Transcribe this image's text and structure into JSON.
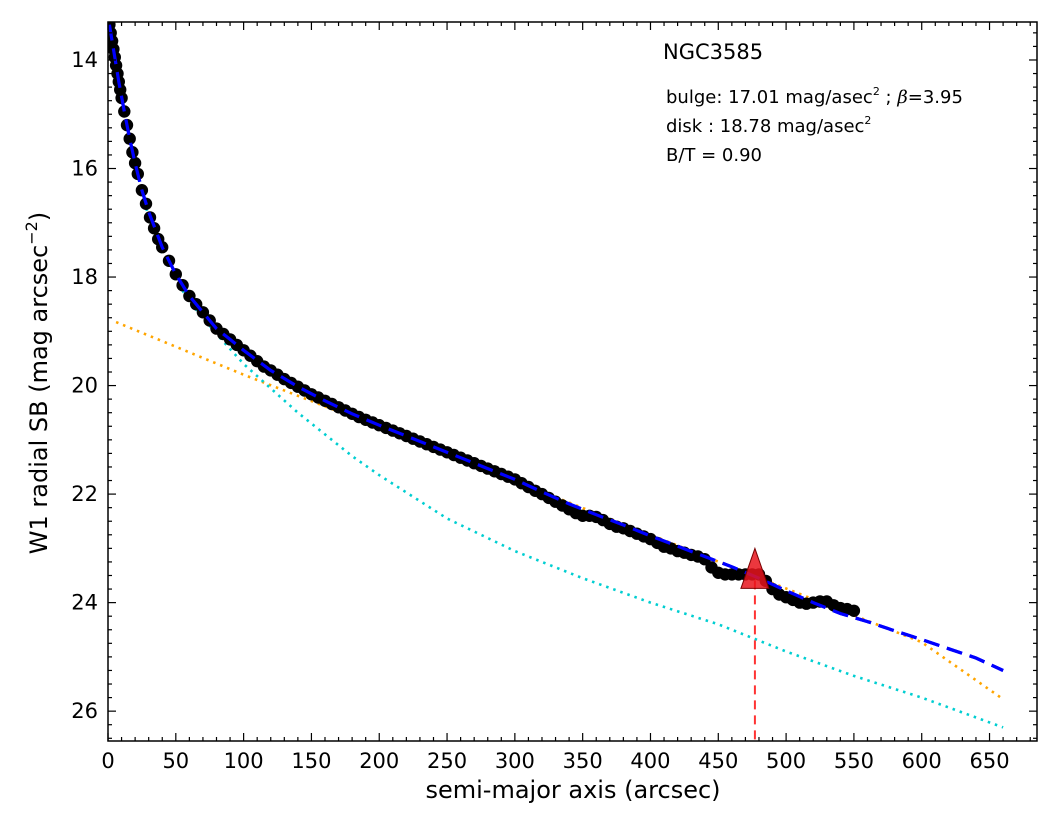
{
  "chart_data": {
    "type": "scatter",
    "title": "NGC3585",
    "xlabel": "semi-major axis (arcsec)",
    "ylabel": "W1 radial SB (mag arcsec",
    "ylabel_exp": "−2",
    "ylabel_close": ")",
    "xlim": [
      0,
      685
    ],
    "ylim": [
      26.55,
      13.3
    ],
    "y_inverted": true,
    "xticks": [
      0,
      50,
      100,
      150,
      200,
      250,
      300,
      350,
      400,
      450,
      500,
      550,
      600,
      650
    ],
    "yticks": [
      14,
      16,
      18,
      20,
      22,
      24,
      26
    ],
    "grid": false,
    "annotations": {
      "bulge_prefix": "bulge: 17.01 mag/asec",
      "bulge_mid": " ; ",
      "beta_symbol": "β",
      "bulge_suffix": "=3.95",
      "disk_prefix": "disk  : 18.78 mag/asec",
      "sup2": "2",
      "bt": "B/T = 0.90"
    },
    "series": [
      {
        "kind": "data-points",
        "color": "#000000",
        "x": [
          1,
          2,
          3,
          4,
          5,
          6,
          7,
          8,
          9,
          10,
          12,
          14,
          16,
          18,
          20,
          22,
          25,
          28,
          31,
          34,
          37,
          40,
          45,
          50,
          55,
          60,
          65,
          70,
          75,
          80,
          85,
          90,
          95,
          100,
          105,
          110,
          115,
          120,
          125,
          130,
          135,
          140,
          145,
          150,
          155,
          160,
          165,
          170,
          175,
          180,
          185,
          190,
          195,
          200,
          205,
          210,
          215,
          220,
          225,
          230,
          235,
          240,
          245,
          250,
          255,
          260,
          265,
          270,
          275,
          280,
          285,
          290,
          295,
          300,
          305,
          310,
          315,
          320,
          325,
          330,
          335,
          340,
          345,
          350,
          355,
          360,
          365,
          370,
          375,
          380,
          385,
          390,
          395,
          400,
          405,
          410,
          415,
          420,
          425,
          430,
          435,
          440,
          445,
          450,
          455,
          460,
          465,
          470,
          475,
          480,
          485,
          490,
          495,
          500,
          505,
          510,
          515,
          520,
          525,
          530,
          535,
          540,
          545,
          550
        ],
        "y": [
          13.35,
          13.5,
          13.65,
          13.8,
          13.95,
          14.1,
          14.25,
          14.4,
          14.55,
          14.7,
          14.95,
          15.2,
          15.45,
          15.7,
          15.9,
          16.1,
          16.4,
          16.65,
          16.9,
          17.1,
          17.3,
          17.45,
          17.7,
          17.95,
          18.15,
          18.35,
          18.5,
          18.65,
          18.8,
          18.95,
          19.05,
          19.15,
          19.25,
          19.35,
          19.45,
          19.55,
          19.65,
          19.72,
          19.8,
          19.88,
          19.95,
          20.02,
          20.09,
          20.16,
          20.22,
          20.28,
          20.34,
          20.4,
          20.46,
          20.52,
          20.58,
          20.63,
          20.68,
          20.73,
          20.78,
          20.83,
          20.88,
          20.93,
          20.98,
          21.03,
          21.08,
          21.13,
          21.18,
          21.23,
          21.28,
          21.33,
          21.38,
          21.43,
          21.48,
          21.53,
          21.58,
          21.63,
          21.68,
          21.73,
          21.8,
          21.87,
          21.94,
          22.0,
          22.07,
          22.14,
          22.21,
          22.28,
          22.35,
          22.4,
          22.4,
          22.42,
          22.48,
          22.55,
          22.6,
          22.63,
          22.68,
          22.73,
          22.78,
          22.83,
          22.9,
          22.97,
          23.0,
          23.05,
          23.08,
          23.12,
          23.15,
          23.2,
          23.35,
          23.45,
          23.48,
          23.48,
          23.48,
          23.48,
          23.48,
          23.48,
          23.6,
          23.75,
          23.85,
          23.9,
          23.95,
          24.0,
          24.02,
          24.0,
          23.98,
          23.98,
          24.05,
          24.1,
          24.12,
          24.15
        ]
      },
      {
        "kind": "total-fit",
        "color": "#0000ff",
        "dash": "dashed",
        "x": [
          1,
          3,
          5,
          8,
          12,
          16,
          20,
          25,
          30,
          40,
          50,
          60,
          70,
          80,
          90,
          100,
          120,
          140,
          160,
          180,
          200,
          220,
          240,
          260,
          280,
          300,
          320,
          340,
          360,
          380,
          400,
          420,
          440,
          460,
          480,
          500,
          520,
          540,
          560,
          580,
          600,
          620,
          640,
          660
        ],
        "y": [
          13.35,
          13.65,
          13.95,
          14.4,
          14.95,
          15.45,
          15.9,
          16.4,
          16.8,
          17.45,
          17.95,
          18.35,
          18.65,
          18.95,
          19.15,
          19.35,
          19.72,
          20.02,
          20.28,
          20.52,
          20.73,
          20.93,
          21.13,
          21.33,
          21.53,
          21.73,
          21.96,
          22.18,
          22.38,
          22.57,
          22.77,
          22.96,
          23.15,
          23.34,
          23.55,
          23.78,
          24.0,
          24.2,
          24.35,
          24.52,
          24.68,
          24.85,
          25.02,
          25.25
        ]
      },
      {
        "kind": "bulge",
        "color": "#00ced1",
        "dash": "dotted",
        "x": [
          1,
          5,
          10,
          20,
          30,
          40,
          50,
          60,
          80,
          100,
          120,
          140,
          160,
          180,
          200,
          250,
          300,
          350,
          400,
          450,
          500,
          550,
          600,
          660
        ],
        "y": [
          13.35,
          14.0,
          14.7,
          15.95,
          16.9,
          17.55,
          18.05,
          18.45,
          19.05,
          19.6,
          20.05,
          20.5,
          20.9,
          21.3,
          21.65,
          22.45,
          23.05,
          23.55,
          24.0,
          24.4,
          24.9,
          25.35,
          25.75,
          26.3
        ]
      },
      {
        "kind": "disk",
        "color": "#ffa500",
        "dash": "dotted",
        "x": [
          6,
          100,
          200,
          300,
          400,
          500,
          600,
          660
        ],
        "y": [
          18.83,
          19.8,
          20.77,
          21.76,
          22.75,
          23.74,
          24.73,
          25.78
        ]
      }
    ],
    "marker": {
      "shape": "triangle",
      "color": "#e8141c",
      "x": 477,
      "y": 23.48,
      "dash_color": "#ff3333"
    }
  }
}
